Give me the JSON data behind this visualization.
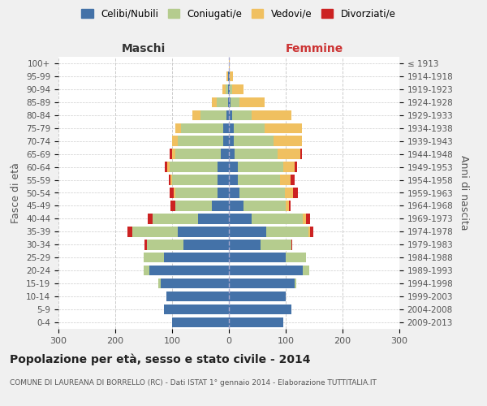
{
  "age_groups": [
    "0-4",
    "5-9",
    "10-14",
    "15-19",
    "20-24",
    "25-29",
    "30-34",
    "35-39",
    "40-44",
    "45-49",
    "50-54",
    "55-59",
    "60-64",
    "65-69",
    "70-74",
    "75-79",
    "80-84",
    "85-89",
    "90-94",
    "95-99",
    "100+"
  ],
  "birth_years": [
    "2009-2013",
    "2004-2008",
    "1999-2003",
    "1994-1998",
    "1989-1993",
    "1984-1988",
    "1979-1983",
    "1974-1978",
    "1969-1973",
    "1964-1968",
    "1959-1963",
    "1954-1958",
    "1949-1953",
    "1944-1948",
    "1939-1943",
    "1934-1938",
    "1929-1933",
    "1924-1928",
    "1919-1923",
    "1914-1918",
    "≤ 1913"
  ],
  "males": {
    "celibi": [
      100,
      115,
      110,
      120,
      140,
      115,
      80,
      90,
      55,
      30,
      20,
      20,
      20,
      15,
      10,
      10,
      5,
      2,
      1,
      1,
      0
    ],
    "coniugati": [
      0,
      0,
      0,
      5,
      10,
      35,
      65,
      80,
      80,
      65,
      75,
      80,
      85,
      80,
      80,
      75,
      45,
      20,
      5,
      1,
      0
    ],
    "vedovi": [
      0,
      0,
      0,
      0,
      0,
      0,
      0,
      0,
      0,
      0,
      2,
      3,
      3,
      5,
      10,
      10,
      15,
      8,
      5,
      2,
      0
    ],
    "divorziati": [
      0,
      0,
      0,
      0,
      0,
      0,
      3,
      8,
      8,
      8,
      8,
      3,
      5,
      5,
      0,
      0,
      0,
      0,
      0,
      0,
      0
    ]
  },
  "females": {
    "nubili": [
      95,
      110,
      100,
      115,
      130,
      100,
      55,
      65,
      40,
      25,
      18,
      15,
      15,
      10,
      8,
      8,
      5,
      3,
      1,
      1,
      0
    ],
    "coniugate": [
      0,
      0,
      0,
      3,
      12,
      35,
      55,
      75,
      90,
      75,
      80,
      75,
      80,
      75,
      70,
      55,
      35,
      15,
      5,
      1,
      0
    ],
    "vedove": [
      0,
      0,
      0,
      0,
      0,
      0,
      0,
      3,
      5,
      5,
      15,
      18,
      20,
      40,
      50,
      65,
      70,
      45,
      20,
      5,
      1
    ],
    "divorziate": [
      0,
      0,
      0,
      0,
      0,
      0,
      2,
      5,
      8,
      3,
      8,
      8,
      5,
      3,
      0,
      0,
      0,
      0,
      0,
      0,
      0
    ]
  },
  "colors": {
    "celibi": "#4472a8",
    "coniugati": "#b5cc8e",
    "vedovi": "#f0c060",
    "divorziati": "#cc2222"
  },
  "xlim": 300,
  "title": "Popolazione per età, sesso e stato civile - 2014",
  "subtitle": "COMUNE DI LAUREANA DI BORRELLO (RC) - Dati ISTAT 1° gennaio 2014 - Elaborazione TUTTITALIA.IT",
  "ylabel_left": "Fasce di età",
  "ylabel_right": "Anni di nascita",
  "maschi_label": "Maschi",
  "femmine_label": "Femmine",
  "legend_labels": [
    "Celibi/Nubili",
    "Coniugati/e",
    "Vedovi/e",
    "Divorziati/e"
  ],
  "bg_color": "#f0f0f0",
  "plot_bg": "#ffffff"
}
